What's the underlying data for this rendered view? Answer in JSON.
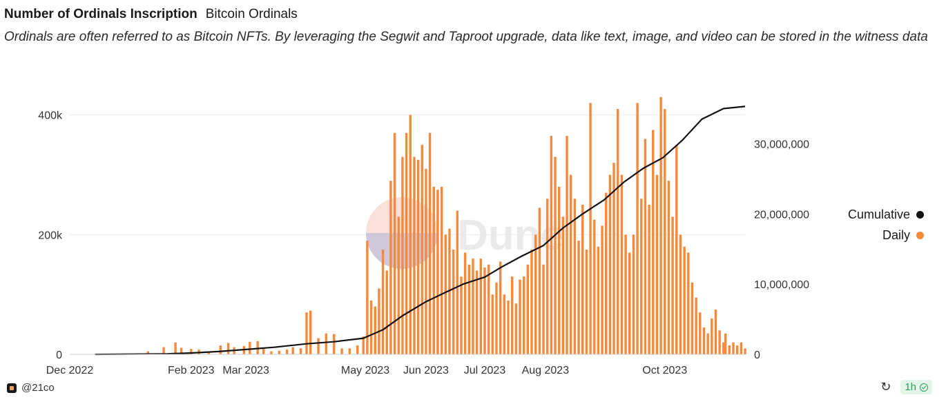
{
  "header": {
    "title": "Number of Ordinals Inscription",
    "subtitle": "Bitcoin Ordinals",
    "description": "Ordinals are often referred to as Bitcoin NFTs. By leveraging the Segwit and Taproot upgrade, data like text, image, and video can be stored in the witness data"
  },
  "legend": {
    "cumulative_label": "Cumulative",
    "daily_label": "Daily"
  },
  "footer": {
    "author": "@21co",
    "refresh_badge": "1h"
  },
  "colors": {
    "daily": "#f7893b",
    "cumulative": "#111111",
    "grid": "#ececec"
  },
  "icons": {
    "refresh": "refresh-icon",
    "check": "check-circle-icon",
    "logo": "dune-logo-icon",
    "watermark": "dune-watermark"
  },
  "chart_data": {
    "type": "bar",
    "title": "Number of Ordinals Inscription",
    "x_ticks": [
      "Dec 2022",
      "Feb 2023",
      "Mar 2023",
      "May 2023",
      "Jun 2023",
      "Jul 2023",
      "Aug 2023",
      "Oct 2023"
    ],
    "x_tick_dates": [
      "2022-12-01",
      "2023-02-01",
      "2023-03-01",
      "2023-05-01",
      "2023-06-01",
      "2023-07-01",
      "2023-08-01",
      "2023-10-01"
    ],
    "x_range": [
      "2022-12-01",
      "2023-11-11"
    ],
    "y_left": {
      "ticks": [
        "0",
        "200k",
        "400k"
      ],
      "tick_values": [
        0,
        200000,
        400000
      ],
      "range": [
        0,
        440000
      ]
    },
    "y_right": {
      "ticks": [
        "0",
        "10,000,000",
        "20,000,000",
        "30,000,000"
      ],
      "tick_values": [
        0,
        10000000,
        20000000,
        30000000
      ],
      "range": [
        0,
        37500000
      ]
    },
    "grid": true,
    "legend_position": "right",
    "series": [
      {
        "name": "Daily",
        "kind": "bar",
        "axis": "left",
        "points": [
          [
            "2022-12-14",
            1000
          ],
          [
            "2023-01-10",
            5000
          ],
          [
            "2023-01-18",
            12000
          ],
          [
            "2023-01-24",
            20000
          ],
          [
            "2023-01-27",
            11000
          ],
          [
            "2023-02-01",
            9000
          ],
          [
            "2023-02-05",
            8000
          ],
          [
            "2023-02-10",
            4000
          ],
          [
            "2023-02-16",
            15000
          ],
          [
            "2023-02-20",
            19000
          ],
          [
            "2023-02-23",
            12000
          ],
          [
            "2023-02-28",
            14000
          ],
          [
            "2023-03-03",
            21000
          ],
          [
            "2023-03-07",
            22000
          ],
          [
            "2023-03-10",
            10000
          ],
          [
            "2023-03-14",
            5000
          ],
          [
            "2023-03-18",
            6000
          ],
          [
            "2023-03-22",
            8000
          ],
          [
            "2023-03-25",
            12000
          ],
          [
            "2023-03-29",
            10000
          ],
          [
            "2023-04-01",
            70000
          ],
          [
            "2023-04-03",
            73000
          ],
          [
            "2023-04-07",
            27000
          ],
          [
            "2023-04-11",
            35000
          ],
          [
            "2023-04-15",
            34000
          ],
          [
            "2023-04-19",
            10000
          ],
          [
            "2023-04-23",
            10000
          ],
          [
            "2023-04-27",
            15000
          ],
          [
            "2023-04-30",
            30000
          ],
          [
            "2023-05-02",
            190000
          ],
          [
            "2023-05-04",
            90000
          ],
          [
            "2023-05-06",
            80000
          ],
          [
            "2023-05-08",
            110000
          ],
          [
            "2023-05-10",
            175000
          ],
          [
            "2023-05-12",
            140000
          ],
          [
            "2023-05-14",
            290000
          ],
          [
            "2023-05-16",
            370000
          ],
          [
            "2023-05-18",
            230000
          ],
          [
            "2023-05-20",
            330000
          ],
          [
            "2023-05-22",
            370000
          ],
          [
            "2023-05-24",
            400000
          ],
          [
            "2023-05-26",
            330000
          ],
          [
            "2023-05-28",
            325000
          ],
          [
            "2023-05-30",
            350000
          ],
          [
            "2023-06-01",
            310000
          ],
          [
            "2023-06-03",
            370000
          ],
          [
            "2023-06-05",
            280000
          ],
          [
            "2023-06-07",
            275000
          ],
          [
            "2023-06-09",
            280000
          ],
          [
            "2023-06-11",
            200000
          ],
          [
            "2023-06-13",
            210000
          ],
          [
            "2023-06-15",
            175000
          ],
          [
            "2023-06-17",
            240000
          ],
          [
            "2023-06-19",
            130000
          ],
          [
            "2023-06-21",
            170000
          ],
          [
            "2023-06-23",
            150000
          ],
          [
            "2023-06-25",
            160000
          ],
          [
            "2023-06-27",
            140000
          ],
          [
            "2023-06-29",
            160000
          ],
          [
            "2023-07-01",
            145000
          ],
          [
            "2023-07-03",
            150000
          ],
          [
            "2023-07-05",
            100000
          ],
          [
            "2023-07-07",
            120000
          ],
          [
            "2023-07-09",
            155000
          ],
          [
            "2023-07-11",
            100000
          ],
          [
            "2023-07-13",
            90000
          ],
          [
            "2023-07-15",
            130000
          ],
          [
            "2023-07-17",
            85000
          ],
          [
            "2023-07-19",
            125000
          ],
          [
            "2023-07-21",
            130000
          ],
          [
            "2023-07-23",
            150000
          ],
          [
            "2023-07-25",
            175000
          ],
          [
            "2023-07-27",
            200000
          ],
          [
            "2023-07-29",
            245000
          ],
          [
            "2023-07-31",
            150000
          ],
          [
            "2023-08-02",
            260000
          ],
          [
            "2023-08-04",
            365000
          ],
          [
            "2023-08-06",
            330000
          ],
          [
            "2023-08-08",
            280000
          ],
          [
            "2023-08-10",
            230000
          ],
          [
            "2023-08-12",
            365000
          ],
          [
            "2023-08-14",
            300000
          ],
          [
            "2023-08-16",
            260000
          ],
          [
            "2023-08-18",
            190000
          ],
          [
            "2023-08-20",
            250000
          ],
          [
            "2023-08-22",
            175000
          ],
          [
            "2023-08-24",
            420000
          ],
          [
            "2023-08-26",
            225000
          ],
          [
            "2023-08-28",
            180000
          ],
          [
            "2023-08-30",
            215000
          ],
          [
            "2023-09-01",
            270000
          ],
          [
            "2023-09-03",
            300000
          ],
          [
            "2023-09-05",
            320000
          ],
          [
            "2023-09-07",
            410000
          ],
          [
            "2023-09-09",
            300000
          ],
          [
            "2023-09-11",
            200000
          ],
          [
            "2023-09-13",
            170000
          ],
          [
            "2023-09-15",
            200000
          ],
          [
            "2023-09-17",
            420000
          ],
          [
            "2023-09-19",
            260000
          ],
          [
            "2023-09-21",
            360000
          ],
          [
            "2023-09-23",
            250000
          ],
          [
            "2023-09-25",
            375000
          ],
          [
            "2023-09-27",
            300000
          ],
          [
            "2023-09-29",
            430000
          ],
          [
            "2023-10-01",
            410000
          ],
          [
            "2023-10-03",
            290000
          ],
          [
            "2023-10-05",
            230000
          ],
          [
            "2023-10-07",
            350000
          ],
          [
            "2023-10-09",
            200000
          ],
          [
            "2023-10-11",
            180000
          ],
          [
            "2023-10-13",
            170000
          ],
          [
            "2023-10-15",
            120000
          ],
          [
            "2023-10-17",
            95000
          ],
          [
            "2023-10-19",
            70000
          ],
          [
            "2023-10-21",
            45000
          ],
          [
            "2023-10-23",
            35000
          ],
          [
            "2023-10-25",
            60000
          ],
          [
            "2023-10-27",
            75000
          ],
          [
            "2023-10-29",
            40000
          ],
          [
            "2023-10-31",
            20000
          ],
          [
            "2023-11-01",
            35000
          ],
          [
            "2023-11-03",
            15000
          ],
          [
            "2023-11-05",
            20000
          ],
          [
            "2023-11-07",
            15000
          ],
          [
            "2023-11-09",
            20000
          ],
          [
            "2023-11-11",
            10000
          ]
        ]
      },
      {
        "name": "Cumulative",
        "kind": "line",
        "axis": "right",
        "points": [
          [
            "2022-12-14",
            0
          ],
          [
            "2023-01-20",
            80000
          ],
          [
            "2023-02-01",
            200000
          ],
          [
            "2023-02-15",
            400000
          ],
          [
            "2023-03-01",
            700000
          ],
          [
            "2023-03-15",
            1000000
          ],
          [
            "2023-04-01",
            1500000
          ],
          [
            "2023-04-15",
            1800000
          ],
          [
            "2023-04-30",
            2300000
          ],
          [
            "2023-05-10",
            3500000
          ],
          [
            "2023-05-20",
            5500000
          ],
          [
            "2023-06-01",
            7500000
          ],
          [
            "2023-06-10",
            8700000
          ],
          [
            "2023-06-20",
            10000000
          ],
          [
            "2023-07-01",
            11000000
          ],
          [
            "2023-07-10",
            12500000
          ],
          [
            "2023-07-20",
            14000000
          ],
          [
            "2023-07-31",
            15500000
          ],
          [
            "2023-08-10",
            18000000
          ],
          [
            "2023-08-20",
            20000000
          ],
          [
            "2023-08-31",
            22000000
          ],
          [
            "2023-09-10",
            24500000
          ],
          [
            "2023-09-20",
            26500000
          ],
          [
            "2023-09-30",
            28000000
          ],
          [
            "2023-10-10",
            30500000
          ],
          [
            "2023-10-20",
            33500000
          ],
          [
            "2023-10-31",
            35000000
          ],
          [
            "2023-11-11",
            35300000
          ]
        ]
      }
    ]
  }
}
